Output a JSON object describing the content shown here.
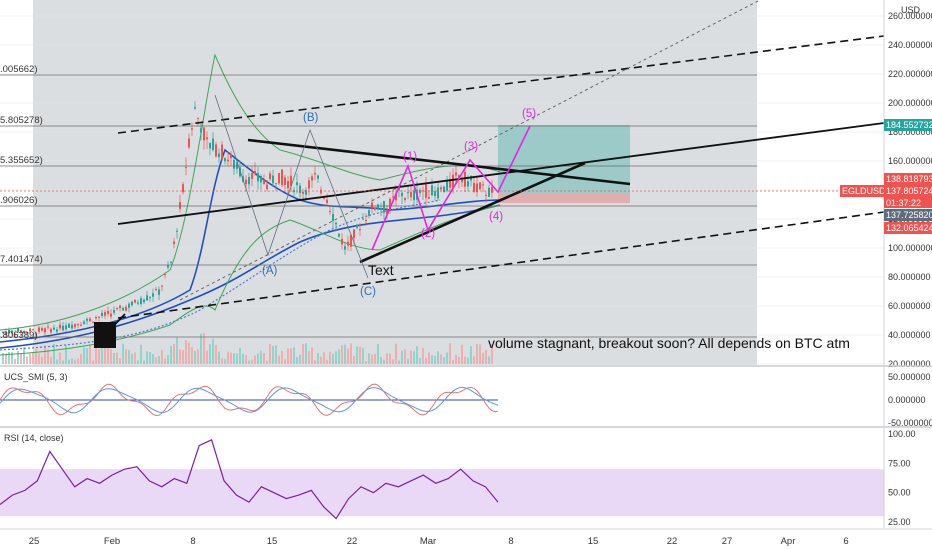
{
  "header": {
    "currency": "USD"
  },
  "chart_data": [
    {
      "type": "candlestick",
      "title": "",
      "symbol": "EGLDUSD",
      "x_ticks": [
        "25",
        "Feb",
        "8",
        "15",
        "22",
        "Mar",
        "8",
        "15",
        "22",
        "27",
        "Apr",
        "6"
      ],
      "y_ticks": [
        "260.000000",
        "240.000000",
        "220.000000",
        "200.000000",
        "180.000000",
        "160.000000",
        "140.000000",
        "120.000000",
        "100.000000",
        "80.000000",
        "60.000000",
        "40.000000",
        "20.000000"
      ],
      "y_range": [
        20,
        260
      ],
      "price_tags": [
        {
          "label": "184.552732",
          "value": 184.55,
          "color": "#26a69a"
        },
        {
          "label": "138.818793",
          "value": 138.82,
          "color": "#ef5350"
        },
        {
          "label": "137.805724",
          "value": 137.81,
          "color": "#ef5350"
        },
        {
          "label": "01:37:22",
          "value": 0,
          "color": "#ef5350"
        },
        {
          "label": "137.725820",
          "value": 137.73,
          "color": "#5d6d7e"
        },
        {
          "label": "132.065424",
          "value": 132.07,
          "color": "#ef5350"
        }
      ],
      "symbol_tag": "EGLDUSD",
      "left_level_labels": [
        ".005662)",
        "5.805278)",
        "5.355652)",
        ".906026)",
        "7.401474)",
        ".806389)"
      ],
      "elliott_labels": {
        "blue": [
          "(A)",
          "(B)",
          "(C)"
        ],
        "magenta": [
          "(1)",
          "(2)",
          "(3)",
          "(4)",
          "(5)"
        ]
      },
      "text_note": "Text",
      "annotation": "volume stagnant, breakout soon? All depends on BTC atm",
      "price_path": [
        [
          0,
          42
        ],
        [
          3,
          43
        ],
        [
          5,
          45
        ],
        [
          7,
          50
        ],
        [
          9,
          55
        ],
        [
          11,
          62
        ],
        [
          13,
          70
        ],
        [
          14,
          90
        ],
        [
          15,
          140
        ],
        [
          15.5,
          175
        ],
        [
          16,
          195
        ],
        [
          16.5,
          185
        ],
        [
          17,
          172
        ],
        [
          18,
          168
        ],
        [
          19,
          160
        ],
        [
          20,
          150
        ],
        [
          21,
          148
        ],
        [
          22,
          145
        ],
        [
          23,
          150
        ],
        [
          24,
          145
        ],
        [
          25,
          140
        ],
        [
          26,
          148
        ],
        [
          27,
          135
        ],
        [
          28,
          110
        ],
        [
          28.5,
          100
        ],
        [
          29,
          105
        ],
        [
          30,
          120
        ],
        [
          31,
          130
        ],
        [
          32,
          127
        ],
        [
          33,
          138
        ],
        [
          34,
          135
        ],
        [
          35,
          140
        ],
        [
          36,
          138
        ],
        [
          37,
          142
        ],
        [
          38,
          150
        ],
        [
          39,
          145
        ],
        [
          40,
          140
        ],
        [
          41,
          137.8
        ]
      ]
    },
    {
      "type": "line",
      "title": "UCS_SMI (5, 3)",
      "y_ticks": [
        "50.000000",
        "0.000000",
        "-50.000000"
      ],
      "y_range": [
        -60,
        60
      ]
    },
    {
      "type": "line",
      "title": "RSI (14, close)",
      "y_ticks": [
        "100.00",
        "75.00",
        "50.00",
        "25.00"
      ],
      "y_range": [
        20,
        105
      ],
      "band": [
        30,
        70
      ],
      "values": [
        40,
        48,
        52,
        60,
        85,
        70,
        55,
        62,
        58,
        65,
        70,
        72,
        60,
        55,
        62,
        58,
        90,
        95,
        60,
        48,
        42,
        55,
        50,
        45,
        48,
        52,
        38,
        28,
        45,
        55,
        50,
        58,
        55,
        60,
        65,
        58,
        62,
        70,
        60,
        55,
        42
      ]
    }
  ]
}
